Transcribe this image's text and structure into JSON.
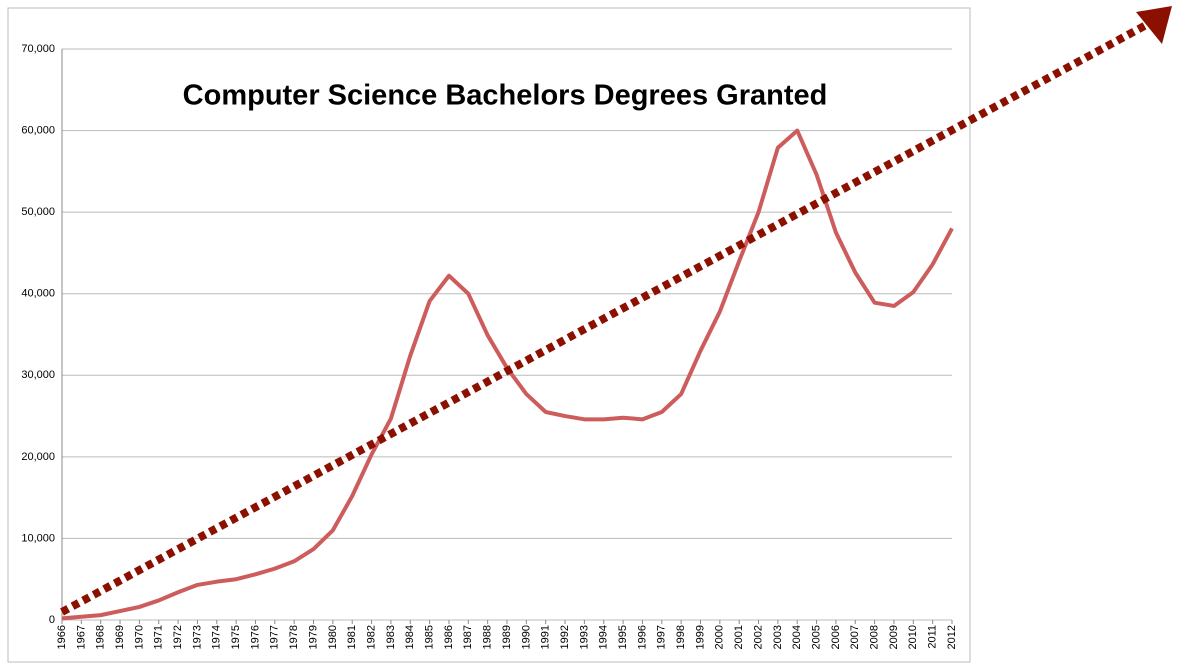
{
  "chart_data": {
    "type": "line",
    "title": "Computer Science Bachelors Degrees Granted",
    "categories": [
      "1966",
      "1967",
      "1968",
      "1969",
      "1970",
      "1971",
      "1972",
      "1973",
      "1974",
      "1975",
      "1976",
      "1977",
      "1978",
      "1979",
      "1980",
      "1981",
      "1982",
      "1983",
      "1984",
      "1985",
      "1986",
      "1987",
      "1988",
      "1989",
      "1990",
      "1991",
      "1992",
      "1993",
      "1994",
      "1995",
      "1996",
      "1997",
      "1998",
      "1999",
      "2000",
      "2001",
      "2002",
      "2003",
      "2004",
      "2005",
      "2006",
      "2007",
      "2008",
      "2009",
      "2010",
      "2011",
      "2012"
    ],
    "series": [
      {
        "color": "#cd5c5c",
        "values": [
          200,
          400,
          600,
          1100,
          1600,
          2400,
          3400,
          4300,
          4700,
          5000,
          5600,
          6300,
          7200,
          8700,
          11000,
          15200,
          20300,
          24700,
          32400,
          39100,
          42200,
          40000,
          34900,
          30900,
          27700,
          25500,
          25000,
          24600,
          24600,
          24800,
          24600,
          25500,
          27700,
          33000,
          37800,
          44000,
          50000,
          57900,
          60000,
          54600,
          47500,
          42600,
          38900,
          38500,
          40200,
          43600,
          48000
        ]
      }
    ],
    "ylim": [
      0,
      70000
    ],
    "yticks": [
      0,
      {
        "value": 10000,
        "label": "10,000"
      },
      {
        "value": 20000,
        "label": "20,000"
      },
      {
        "value": 30000,
        "label": "30,000"
      },
      {
        "value": 40000,
        "label": "40,000"
      },
      {
        "value": 50000,
        "label": "50,000"
      },
      {
        "value": 60000,
        "label": "60,000"
      },
      {
        "value": 70000,
        "label": "70,000"
      }
    ],
    "grid": true
  }
}
